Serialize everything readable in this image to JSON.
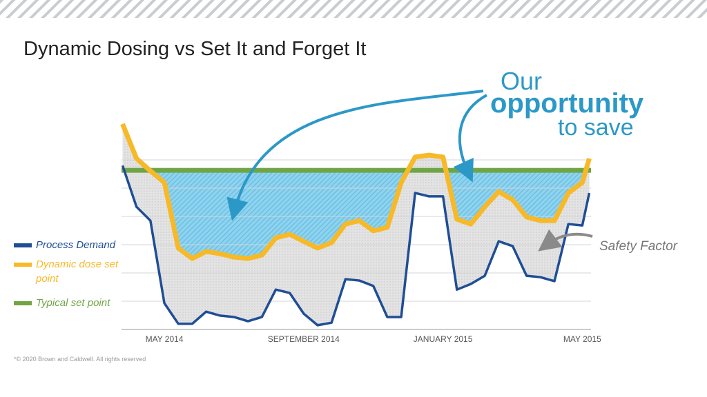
{
  "title": "Dynamic Dosing vs Set It and Forget It",
  "footer": "*© 2020 Brown and Caldwell. All rights reserved",
  "chart_data": {
    "type": "line",
    "x": [
      -1.2,
      -0.8,
      -0.4,
      0,
      0.4,
      0.8,
      1.2,
      1.6,
      2.0,
      2.4,
      2.8,
      3.2,
      3.6,
      4.0,
      4.4,
      4.8,
      5.2,
      5.6,
      6.0,
      6.4,
      6.8,
      7.2,
      7.6,
      8.0,
      8.4,
      8.8,
      9.2,
      9.6,
      10.0,
      10.4,
      10.8,
      11.2,
      11.6,
      12.0,
      12.2
    ],
    "series": [
      {
        "name": "Process Demand",
        "color": "#1f4e96",
        "values": [
          5.8,
          4.34,
          3.85,
          0.93,
          0.2,
          0.2,
          0.63,
          0.49,
          0.44,
          0.29,
          0.44,
          1.41,
          1.29,
          0.56,
          0.15,
          0.24,
          1.78,
          1.73,
          1.54,
          0.44,
          0.44,
          4.83,
          4.71,
          4.71,
          1.41,
          1.61,
          1.9,
          3.12,
          2.95,
          1.9,
          1.85,
          1.71,
          3.73,
          3.68,
          4.83
        ]
      },
      {
        "name": "Dynamic dose set point",
        "color": "#f7b928",
        "values": [
          7.27,
          6.05,
          5.61,
          5.2,
          2.88,
          2.51,
          2.76,
          2.68,
          2.56,
          2.51,
          2.63,
          3.24,
          3.37,
          3.12,
          2.88,
          3.07,
          3.73,
          3.85,
          3.49,
          3.61,
          5.2,
          6.1,
          6.17,
          6.1,
          3.9,
          3.73,
          4.34,
          4.88,
          4.59,
          3.98,
          3.85,
          3.85,
          4.83,
          5.2,
          6.05
        ]
      }
    ],
    "hlines": [
      {
        "name": "Typical set point",
        "color": "#6fa544",
        "value": 5.63
      }
    ],
    "xlim": [
      -1.23,
      12.25
    ],
    "xticks": [
      {
        "value": 0,
        "label": "MAY 2014"
      },
      {
        "value": 4,
        "label": "SEPTEMBER 2014"
      },
      {
        "value": 8,
        "label": "JANUARY 2015"
      },
      {
        "value": 12,
        "label": "MAY 2015"
      }
    ],
    "ylim": [
      0,
      7.5
    ],
    "y_gridlines": [
      1,
      2,
      3,
      4,
      5,
      6
    ],
    "annotations": [
      "Our",
      "opportunity",
      "to save",
      "Safety Factor"
    ]
  }
}
